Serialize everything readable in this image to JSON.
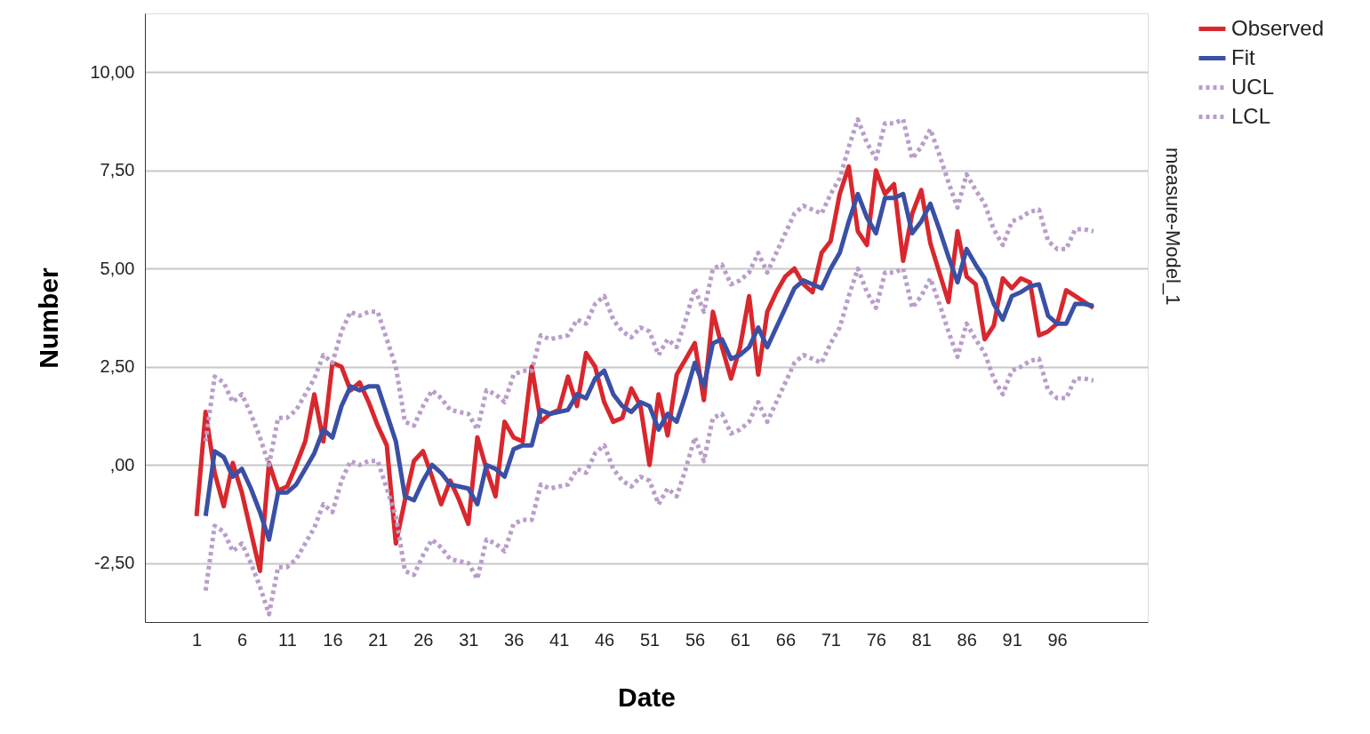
{
  "chart_data": {
    "type": "line",
    "xlabel": "Date",
    "ylabel": "Number",
    "annotations": [
      "measure-Model_1"
    ],
    "x": [
      1,
      2,
      3,
      4,
      5,
      6,
      7,
      8,
      9,
      10,
      11,
      12,
      13,
      14,
      15,
      16,
      17,
      18,
      19,
      20,
      21,
      22,
      23,
      24,
      25,
      26,
      27,
      28,
      29,
      30,
      31,
      32,
      33,
      34,
      35,
      36,
      37,
      38,
      39,
      40,
      41,
      42,
      43,
      44,
      45,
      46,
      47,
      48,
      49,
      50,
      51,
      52,
      53,
      54,
      55,
      56,
      57,
      58,
      59,
      60,
      61,
      62,
      63,
      64,
      65,
      66,
      67,
      68,
      69,
      70,
      71,
      72,
      73,
      74,
      75,
      76,
      77,
      78,
      79,
      80,
      81,
      82,
      83,
      84,
      85,
      86,
      87,
      88,
      89,
      90,
      91,
      92,
      93,
      94,
      95,
      96,
      97,
      98,
      99,
      100
    ],
    "xlim": [
      -4.7,
      106
    ],
    "xticks": [
      1,
      6,
      11,
      16,
      21,
      26,
      31,
      36,
      41,
      46,
      51,
      56,
      61,
      66,
      71,
      76,
      81,
      86,
      91,
      96
    ],
    "ylim": [
      -4.0,
      11.5
    ],
    "yticks": [
      {
        "value": -2.5,
        "label": "-2,50"
      },
      {
        "value": 0,
        "label": ",00"
      },
      {
        "value": 2.5,
        "label": "2,50"
      },
      {
        "value": 5,
        "label": "5,00"
      },
      {
        "value": 7.5,
        "label": "7,50"
      },
      {
        "value": 10,
        "label": "10,00"
      }
    ],
    "grid": "y",
    "legend": "top right",
    "marker": "none",
    "series": [
      {
        "name": "Observed",
        "color": "#d9272e",
        "line_style": "solid",
        "values": [
          -1.3,
          1.35,
          -0.2,
          -1.05,
          0.05,
          -0.7,
          -1.7,
          -2.7,
          0.05,
          -0.65,
          -0.55,
          0.0,
          0.6,
          1.8,
          0.6,
          2.6,
          2.5,
          1.9,
          2.1,
          1.6,
          1.0,
          0.5,
          -2.0,
          -0.9,
          0.1,
          0.35,
          -0.3,
          -1.0,
          -0.4,
          -0.9,
          -1.5,
          0.7,
          -0.1,
          -0.8,
          1.1,
          0.7,
          0.6,
          2.5,
          1.1,
          1.3,
          1.4,
          2.25,
          1.5,
          2.85,
          2.5,
          1.6,
          1.1,
          1.2,
          1.95,
          1.5,
          0.0,
          1.8,
          0.75,
          2.3,
          2.7,
          3.1,
          1.65,
          3.9,
          3.0,
          2.2,
          3.0,
          4.3,
          2.3,
          3.9,
          4.4,
          4.8,
          5.0,
          4.6,
          4.4,
          5.4,
          5.7,
          6.9,
          7.6,
          5.95,
          5.6,
          7.5,
          6.9,
          7.15,
          5.2,
          6.4,
          7.0,
          5.65,
          4.9,
          4.15,
          5.95,
          4.8,
          4.6,
          3.2,
          3.55,
          4.75,
          4.5,
          4.75,
          4.65,
          3.3,
          3.4,
          3.6,
          4.45,
          4.3,
          4.15,
          4.0
        ]
      },
      {
        "name": "Fit",
        "color": "#3a50a5",
        "line_style": "solid",
        "values": [
          null,
          -1.3,
          0.35,
          0.2,
          -0.3,
          -0.1,
          -0.6,
          -1.2,
          -1.9,
          -0.7,
          -0.7,
          -0.5,
          -0.1,
          0.3,
          0.9,
          0.7,
          1.5,
          2.0,
          1.9,
          2.0,
          2.0,
          1.3,
          0.6,
          -0.8,
          -0.9,
          -0.4,
          0.0,
          -0.2,
          -0.5,
          -0.55,
          -0.6,
          -1.0,
          0.0,
          -0.1,
          -0.3,
          0.4,
          0.5,
          0.5,
          1.4,
          1.3,
          1.35,
          1.4,
          1.8,
          1.7,
          2.2,
          2.4,
          1.8,
          1.5,
          1.35,
          1.6,
          1.5,
          0.9,
          1.3,
          1.1,
          1.8,
          2.6,
          2.0,
          3.1,
          3.2,
          2.7,
          2.8,
          3.0,
          3.5,
          3.0,
          3.5,
          4.0,
          4.5,
          4.7,
          4.6,
          4.5,
          5.0,
          5.4,
          6.2,
          6.9,
          6.3,
          5.9,
          6.8,
          6.8,
          6.9,
          5.9,
          6.2,
          6.65,
          6.0,
          5.3,
          4.65,
          5.5,
          5.1,
          4.75,
          4.1,
          3.7,
          4.3,
          4.4,
          4.55,
          4.6,
          3.8,
          3.6,
          3.6,
          4.1,
          4.1,
          4.05
        ]
      },
      {
        "name": "UCL",
        "color": "#b99dca",
        "line_style": "dotted",
        "values": [
          null,
          0.6,
          2.25,
          2.1,
          1.6,
          1.8,
          1.3,
          0.7,
          0.0,
          1.2,
          1.2,
          1.4,
          1.8,
          2.2,
          2.8,
          2.6,
          3.4,
          3.9,
          3.8,
          3.9,
          3.9,
          3.2,
          2.5,
          1.1,
          1.0,
          1.5,
          1.9,
          1.7,
          1.4,
          1.35,
          1.3,
          0.9,
          1.9,
          1.8,
          1.6,
          2.3,
          2.4,
          2.4,
          3.3,
          3.2,
          3.25,
          3.3,
          3.7,
          3.6,
          4.1,
          4.3,
          3.7,
          3.4,
          3.25,
          3.5,
          3.4,
          2.8,
          3.2,
          3.0,
          3.7,
          4.5,
          3.9,
          5.0,
          5.1,
          4.6,
          4.7,
          4.9,
          5.4,
          4.9,
          5.4,
          5.9,
          6.4,
          6.6,
          6.5,
          6.4,
          6.9,
          7.3,
          8.1,
          8.8,
          8.2,
          7.8,
          8.7,
          8.7,
          8.8,
          7.8,
          8.1,
          8.55,
          7.9,
          7.2,
          6.55,
          7.4,
          7.0,
          6.65,
          6.0,
          5.6,
          6.2,
          6.3,
          6.45,
          6.5,
          5.7,
          5.5,
          5.5,
          6.0,
          6.0,
          5.95
        ]
      },
      {
        "name": "LCL",
        "color": "#b99dca",
        "line_style": "dotted",
        "values": [
          null,
          -3.2,
          -1.55,
          -1.7,
          -2.2,
          -2.0,
          -2.5,
          -3.1,
          -3.8,
          -2.6,
          -2.6,
          -2.4,
          -2.0,
          -1.6,
          -1.0,
          -1.2,
          -0.4,
          0.1,
          0.0,
          0.1,
          0.1,
          -0.6,
          -1.3,
          -2.7,
          -2.8,
          -2.3,
          -1.9,
          -2.1,
          -2.4,
          -2.45,
          -2.5,
          -2.9,
          -1.9,
          -2.0,
          -2.2,
          -1.5,
          -1.4,
          -1.4,
          -0.5,
          -0.6,
          -0.55,
          -0.5,
          -0.1,
          -0.2,
          0.3,
          0.5,
          -0.1,
          -0.4,
          -0.55,
          -0.3,
          -0.4,
          -1.0,
          -0.6,
          -0.8,
          -0.1,
          0.7,
          0.1,
          1.2,
          1.3,
          0.8,
          0.9,
          1.1,
          1.6,
          1.1,
          1.6,
          2.1,
          2.6,
          2.8,
          2.7,
          2.6,
          3.1,
          3.5,
          4.3,
          5.0,
          4.4,
          4.0,
          4.9,
          4.9,
          5.0,
          4.0,
          4.3,
          4.75,
          4.1,
          3.4,
          2.75,
          3.6,
          3.2,
          2.85,
          2.2,
          1.8,
          2.4,
          2.5,
          2.65,
          2.7,
          1.9,
          1.7,
          1.7,
          2.2,
          2.2,
          2.15
        ]
      }
    ]
  }
}
